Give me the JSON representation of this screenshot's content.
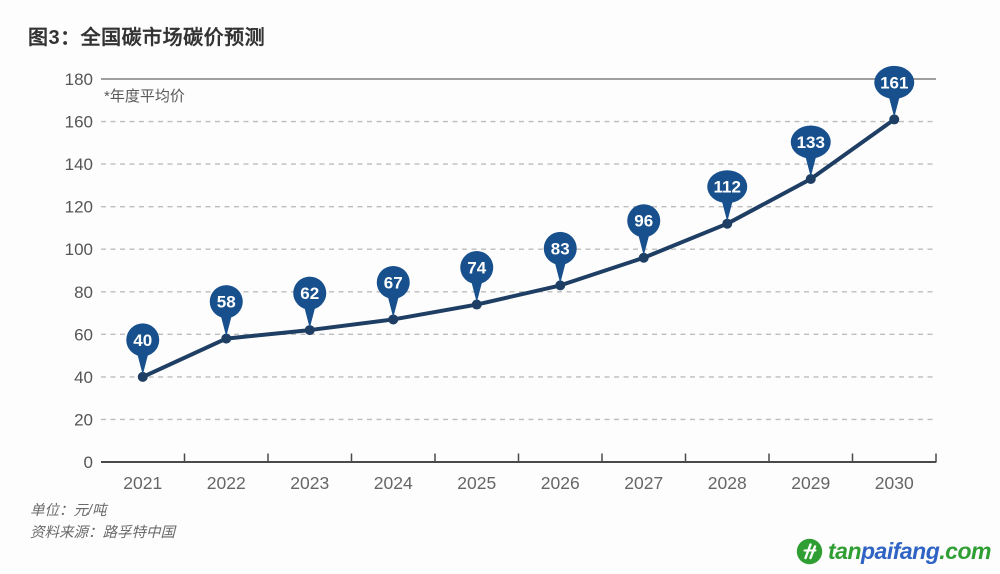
{
  "title": "图3：全国碳市场碳价预测",
  "footer": {
    "unit": "单位：元/吨",
    "source": "资料来源：路孚特中国"
  },
  "logo": {
    "tan": "tan",
    "paifang": "paifang",
    "com": ".com",
    "icon": "tanpaifang-leaf-icon"
  },
  "colors": {
    "line": "#1e3e63",
    "marker": "#1e3e63",
    "balloon": "#17508c",
    "balloon_text": "#ffffff",
    "grid": "#bdbdbd",
    "top_line": "#808080",
    "axis": "#4a4a4a",
    "x_label": "#666666",
    "y_label": "#555555",
    "logo_green": "#2f9e33",
    "logo_blue": "#2f63c4"
  },
  "chart_data": {
    "type": "line",
    "title": "图3：全国碳市场碳价预测",
    "annotation": "*年度平均价",
    "categories": [
      "2021",
      "2022",
      "2023",
      "2024",
      "2025",
      "2026",
      "2027",
      "2028",
      "2029",
      "2030"
    ],
    "values": [
      40,
      58,
      62,
      67,
      74,
      83,
      96,
      112,
      133,
      161
    ],
    "series_name": "全国碳市场碳价预测（年度平均价）",
    "xlabel": "",
    "ylabel": "",
    "unit": "元/吨",
    "ylim": [
      0,
      180
    ],
    "yticks": [
      0,
      20,
      40,
      60,
      80,
      100,
      120,
      140,
      160,
      180
    ],
    "grid": "horizontal dashed, solid top line at 180, solid baseline at 0",
    "legend": "none",
    "data_labels": "balloon pins above each point"
  }
}
